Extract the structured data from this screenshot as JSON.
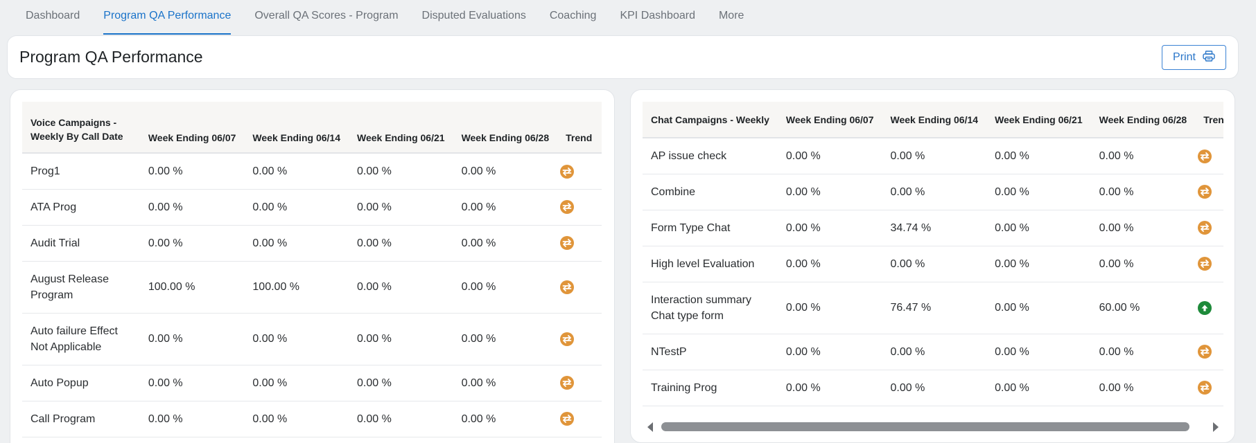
{
  "nav": {
    "tabs": [
      {
        "label": "Dashboard"
      },
      {
        "label": "Program QA Performance",
        "active": true
      },
      {
        "label": "Overall QA Scores - Program"
      },
      {
        "label": "Disputed Evaluations"
      },
      {
        "label": "Coaching"
      },
      {
        "label": "KPI Dashboard"
      },
      {
        "label": "More"
      }
    ]
  },
  "header": {
    "title": "Program QA Performance",
    "print_label": "Print",
    "print_icon": "printer-icon"
  },
  "colors": {
    "accent": "#1a73c9",
    "trend_flat": "#e0953a",
    "trend_up": "#1e8a3a"
  },
  "voice": {
    "headers": [
      "Voice Campaigns - Weekly By Call Date",
      "Week Ending 06/07",
      "Week Ending 06/14",
      "Week Ending 06/21",
      "Week Ending 06/28",
      "Trend"
    ],
    "rows": [
      {
        "name": "Prog1",
        "w1": "0.00 %",
        "w2": "0.00 %",
        "w3": "0.00 %",
        "w4": "0.00 %",
        "trend": "flat"
      },
      {
        "name": "ATA Prog",
        "w1": "0.00 %",
        "w2": "0.00 %",
        "w3": "0.00 %",
        "w4": "0.00 %",
        "trend": "flat"
      },
      {
        "name": "Audit Trial",
        "w1": "0.00 %",
        "w2": "0.00 %",
        "w3": "0.00 %",
        "w4": "0.00 %",
        "trend": "flat"
      },
      {
        "name": "August Release Program",
        "w1": "100.00 %",
        "w2": "100.00 %",
        "w3": "0.00 %",
        "w4": "0.00 %",
        "trend": "flat"
      },
      {
        "name": "Auto failure Effect Not Applicable",
        "w1": "0.00 %",
        "w2": "0.00 %",
        "w3": "0.00 %",
        "w4": "0.00 %",
        "trend": "flat"
      },
      {
        "name": "Auto Popup",
        "w1": "0.00 %",
        "w2": "0.00 %",
        "w3": "0.00 %",
        "w4": "0.00 %",
        "trend": "flat"
      },
      {
        "name": "Call Program",
        "w1": "0.00 %",
        "w2": "0.00 %",
        "w3": "0.00 %",
        "w4": "0.00 %",
        "trend": "flat"
      }
    ]
  },
  "chat": {
    "headers": [
      "Chat Campaigns - Weekly",
      "Week Ending 06/07",
      "Week Ending 06/14",
      "Week Ending 06/21",
      "Week Ending 06/28",
      "Trend"
    ],
    "rows": [
      {
        "name": "AP issue check",
        "w1": "0.00 %",
        "w2": "0.00 %",
        "w3": "0.00 %",
        "w4": "0.00 %",
        "trend": "flat"
      },
      {
        "name": "Combine",
        "w1": "0.00 %",
        "w2": "0.00 %",
        "w3": "0.00 %",
        "w4": "0.00 %",
        "trend": "flat"
      },
      {
        "name": "Form Type Chat",
        "w1": "0.00 %",
        "w2": "34.74 %",
        "w3": "0.00 %",
        "w4": "0.00 %",
        "trend": "flat"
      },
      {
        "name": "High level Evaluation",
        "w1": "0.00 %",
        "w2": "0.00 %",
        "w3": "0.00 %",
        "w4": "0.00 %",
        "trend": "flat"
      },
      {
        "name": "Interaction summary Chat type form",
        "w1": "0.00 %",
        "w2": "76.47 %",
        "w3": "0.00 %",
        "w4": "60.00 %",
        "trend": "up"
      },
      {
        "name": "NTestP",
        "w1": "0.00 %",
        "w2": "0.00 %",
        "w3": "0.00 %",
        "w4": "0.00 %",
        "trend": "flat"
      },
      {
        "name": "Training Prog",
        "w1": "0.00 %",
        "w2": "0.00 %",
        "w3": "0.00 %",
        "w4": "0.00 %",
        "trend": "flat"
      }
    ]
  }
}
